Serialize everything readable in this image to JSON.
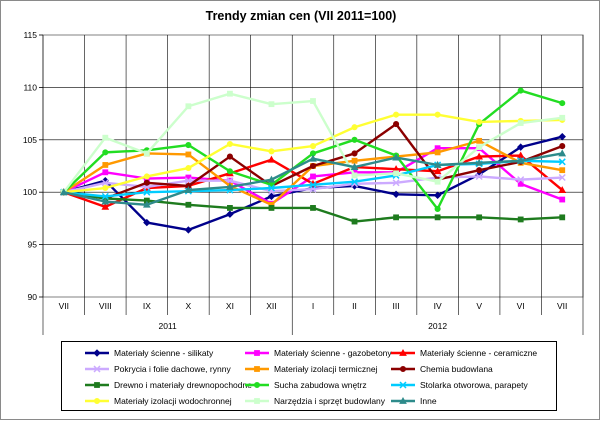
{
  "chart_data": {
    "type": "line",
    "title": "Trendy zmian cen (VII 2011=100)",
    "x": [
      "VII",
      "VIII",
      "IX",
      "X",
      "XI",
      "XII",
      "I",
      "II",
      "III",
      "IV",
      "V",
      "VI",
      "VII"
    ],
    "year_labels": [
      "2011",
      "2012"
    ],
    "ylim": [
      90,
      115
    ],
    "yticks": [
      90,
      95,
      100,
      105,
      110,
      115
    ],
    "grid": true,
    "legend_position": "bottom",
    "series": [
      {
        "name": "Materiały ścienne - silikaty",
        "color": "#00008b",
        "marker": "diamond",
        "values": [
          100,
          101.1,
          97.1,
          96.4,
          97.9,
          99.6,
          100.4,
          100.6,
          99.8,
          99.7,
          101.7,
          104.3,
          105.3
        ]
      },
      {
        "name": "Materiały ścienne - gazobetony",
        "color": "#ff00ff",
        "marker": "square",
        "values": [
          100,
          101.9,
          101.3,
          101.4,
          101.1,
          98.9,
          101.5,
          101.9,
          101.9,
          104.2,
          104.2,
          100.8,
          99.3
        ]
      },
      {
        "name": "Materiały ścienne - ceramiczne",
        "color": "#ff0000",
        "marker": "triangle",
        "values": [
          100,
          98.6,
          100.4,
          100.6,
          101.8,
          103.1,
          100.8,
          102.4,
          102.2,
          102.0,
          103.4,
          103.5,
          100.2
        ]
      },
      {
        "name": "Pokrycia i folie dachowe, rynny",
        "color": "#ccaaff",
        "marker": "x",
        "values": [
          100,
          100.9,
          100.5,
          101.1,
          101.1,
          100.1,
          100.3,
          100.8,
          100.9,
          101.4,
          101.5,
          101.2,
          101.4
        ]
      },
      {
        "name": "Materiały izolacji termicznej",
        "color": "#ff9900",
        "marker": "square",
        "values": [
          100,
          102.6,
          103.7,
          103.6,
          100.6,
          98.8,
          102.5,
          103.0,
          103.4,
          103.8,
          104.9,
          102.8,
          102.1
        ]
      },
      {
        "name": "Chemia budowlana",
        "color": "#8b0000",
        "marker": "circle",
        "values": [
          100,
          99.4,
          100.9,
          100.6,
          103.4,
          100.6,
          102.5,
          103.7,
          106.5,
          101.2,
          102.1,
          102.9,
          104.4
        ]
      },
      {
        "name": "Drewno i materiały drewnopochodne",
        "color": "#1e7b1e",
        "marker": "square",
        "values": [
          100,
          99.4,
          99.2,
          98.8,
          98.5,
          98.5,
          98.5,
          97.2,
          97.6,
          97.6,
          97.6,
          97.4,
          97.6
        ]
      },
      {
        "name": "Sucha zabudowa wnętrz",
        "color": "#22dd22",
        "marker": "circle",
        "values": [
          100,
          103.8,
          104.0,
          104.5,
          102.0,
          100.7,
          103.7,
          105.0,
          103.5,
          98.4,
          106.5,
          109.7,
          108.5
        ]
      },
      {
        "name": "Stolarka otworowa, parapety",
        "color": "#00ccff",
        "marker": "x",
        "values": [
          100,
          99.6,
          100.0,
          100.1,
          100.2,
          100.4,
          100.7,
          101.0,
          101.6,
          102.6,
          102.7,
          103.0,
          102.9
        ]
      },
      {
        "name": "Materiały izolacji wodochronnej",
        "color": "#ffff33",
        "marker": "circle",
        "values": [
          100,
          100.4,
          101.5,
          102.3,
          104.6,
          103.9,
          104.4,
          106.2,
          107.4,
          107.4,
          106.7,
          106.8,
          106.9
        ]
      },
      {
        "name": "Narzędzia i sprzęt budowlany",
        "color": "#ccffcc",
        "marker": "square",
        "values": [
          100,
          105.2,
          103.7,
          108.2,
          109.4,
          108.4,
          108.7,
          101.6,
          101.8,
          101.0,
          104.3,
          106.6,
          107.1
        ]
      },
      {
        "name": "Inne",
        "color": "#2e8b8b",
        "marker": "triangle",
        "values": [
          100,
          99.1,
          98.8,
          100.2,
          100.5,
          101.2,
          103.2,
          102.4,
          103.3,
          102.6,
          102.8,
          103.0,
          103.7
        ]
      }
    ]
  }
}
